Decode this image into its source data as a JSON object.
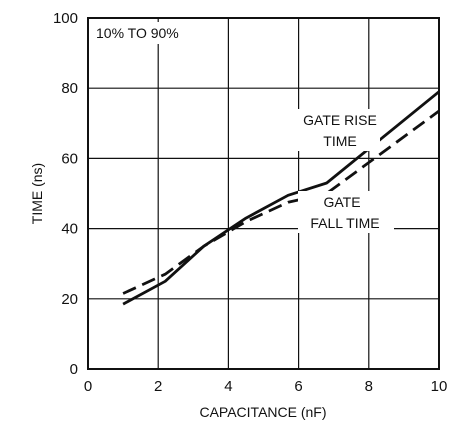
{
  "chart_data": {
    "type": "line",
    "xlabel": "CAPACITANCE (nF)",
    "ylabel": "TIME (ns)",
    "xlim": [
      0,
      10
    ],
    "ylim": [
      0,
      100
    ],
    "x_ticks": [
      "0",
      "2",
      "4",
      "6",
      "8",
      "10"
    ],
    "y_ticks": [
      "0",
      "20",
      "40",
      "60",
      "80",
      "100"
    ],
    "grid": true,
    "annotations": {
      "condition": "10% TO 90%",
      "rise_line1": "GATE RISE",
      "rise_line2": "TIME",
      "fall_line1": "GATE",
      "fall_line2": "FALL TIME"
    },
    "series": [
      {
        "name": "GATE RISE TIME",
        "style": "solid",
        "x": [
          1,
          2.2,
          3.3,
          4.5,
          5.7,
          6.8,
          10
        ],
        "y": [
          18.5,
          25,
          35,
          43,
          49.5,
          53,
          79
        ]
      },
      {
        "name": "GATE FALL TIME",
        "style": "dashed",
        "x": [
          1,
          2.2,
          3.3,
          4.5,
          5.7,
          6.8,
          10
        ],
        "y": [
          21.5,
          27,
          35,
          42,
          47.5,
          50,
          73.5
        ]
      }
    ]
  }
}
